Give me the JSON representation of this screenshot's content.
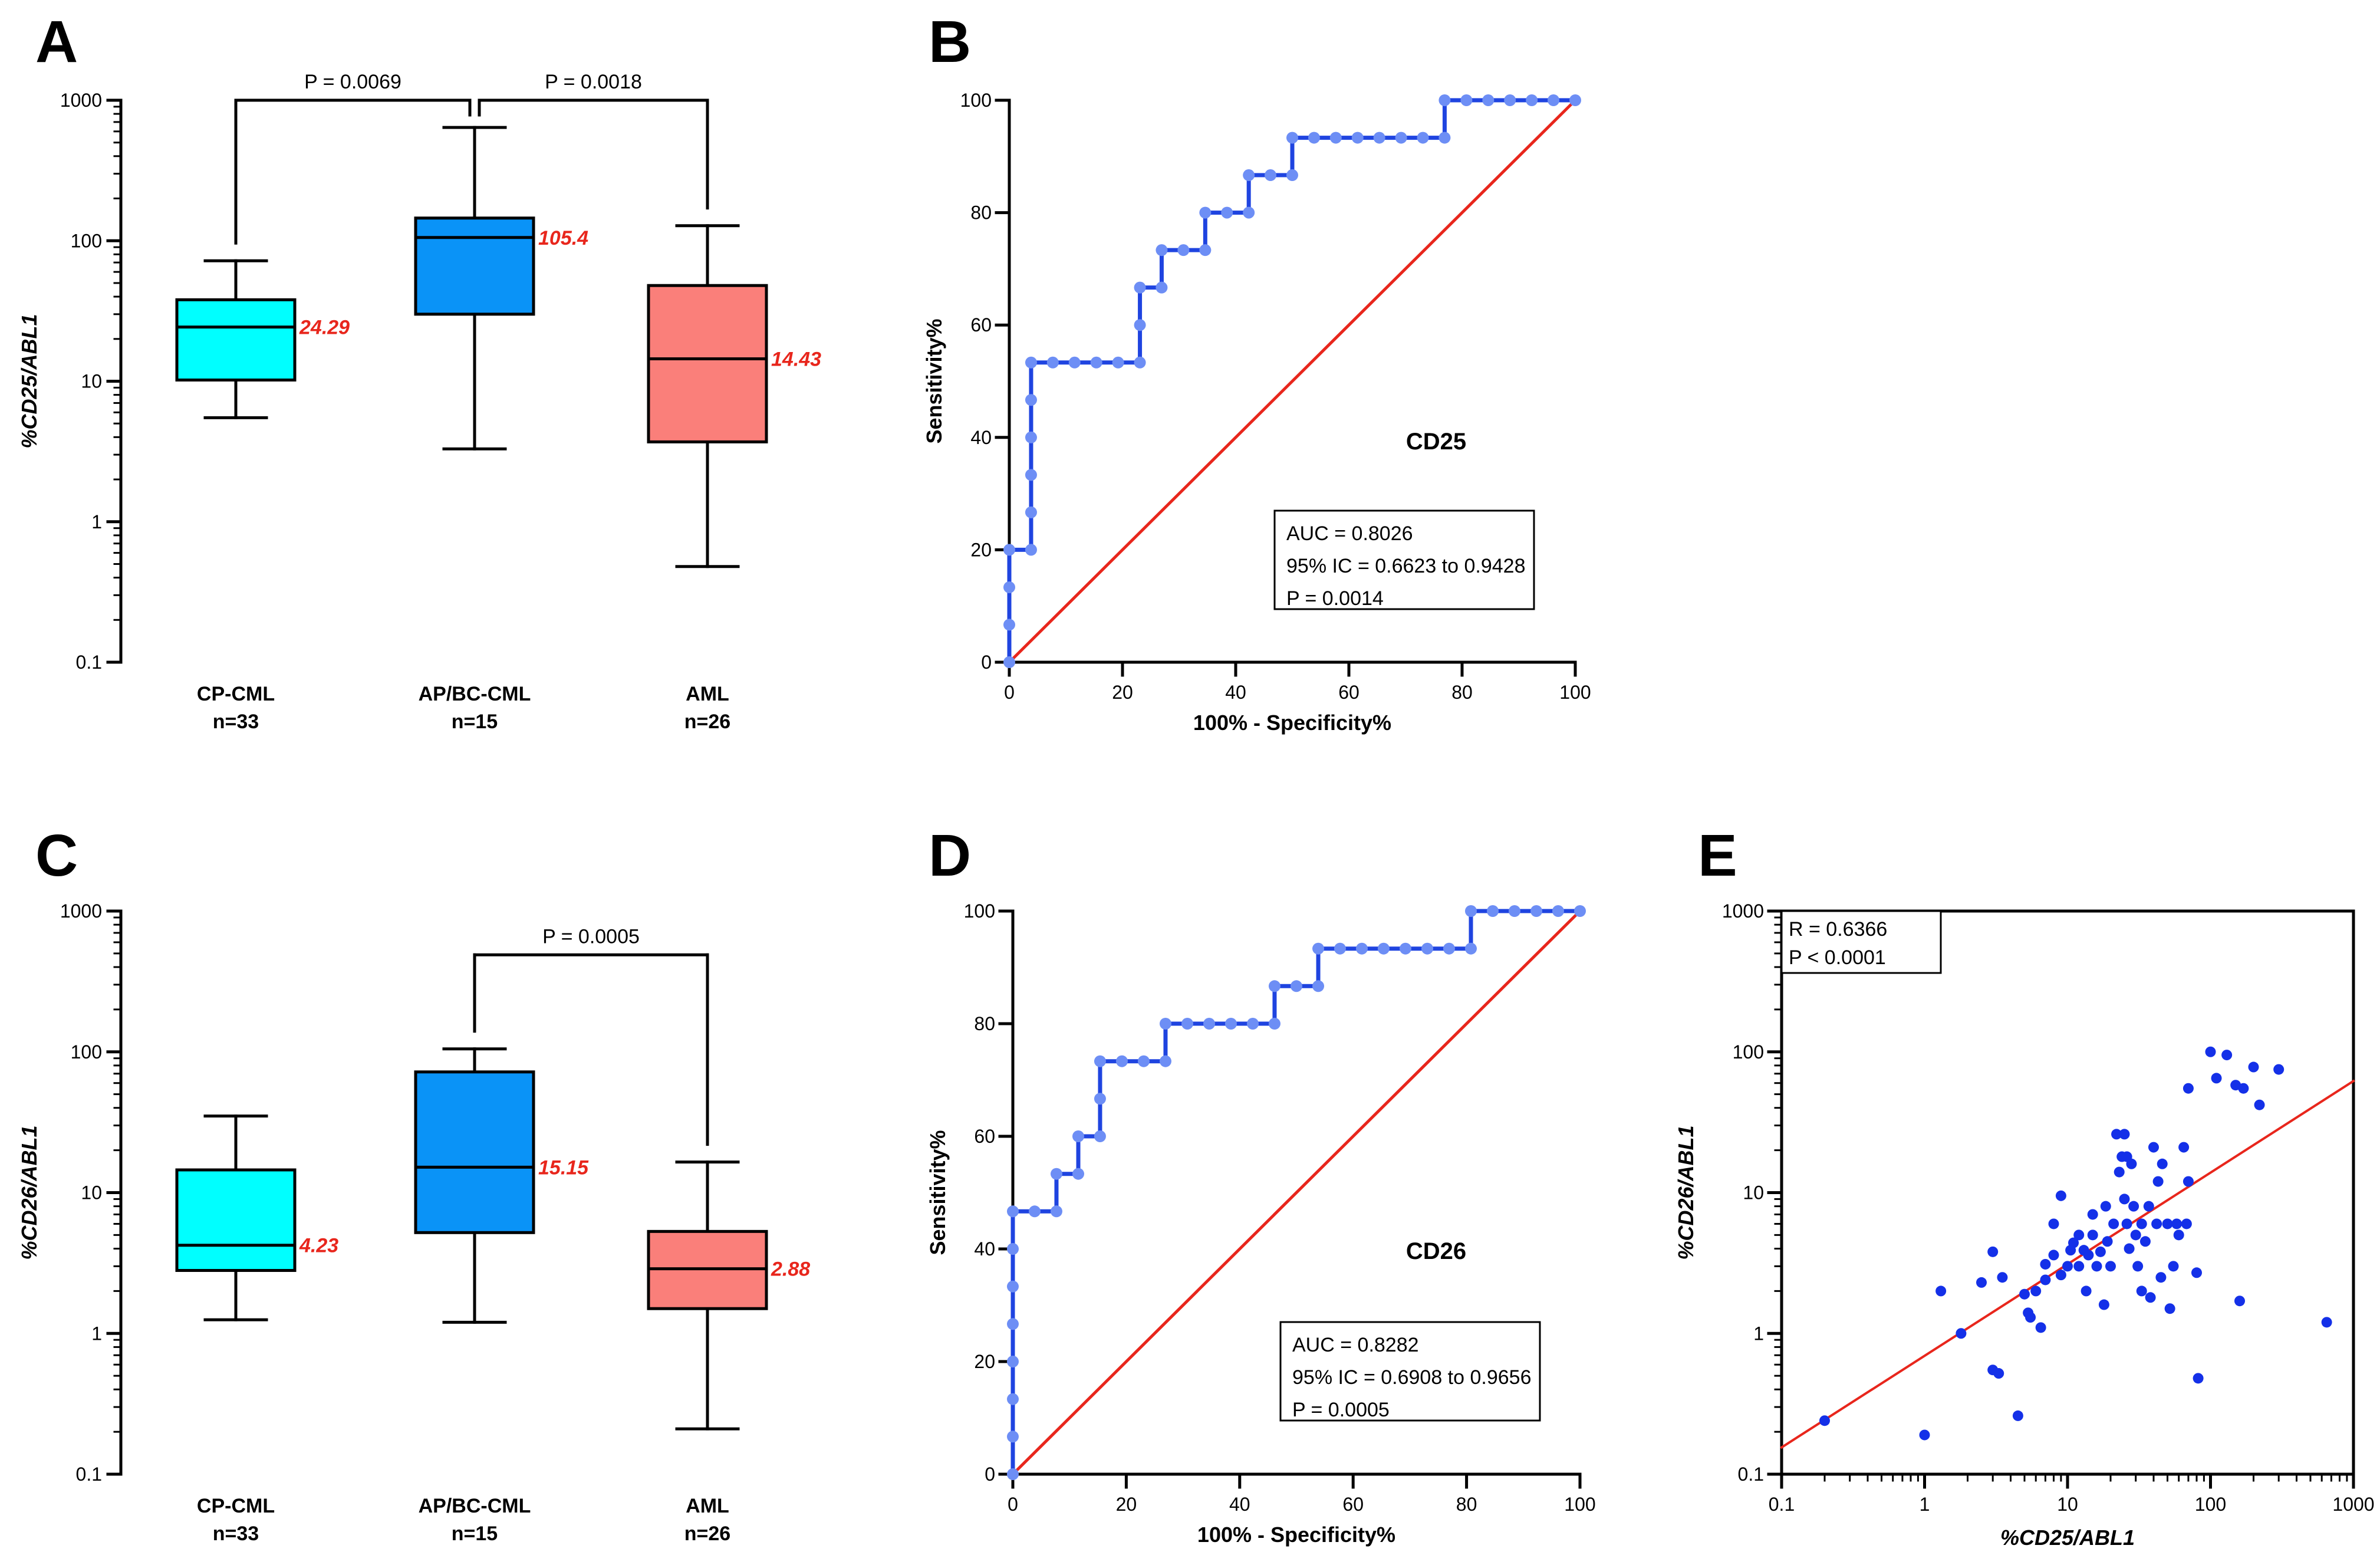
{
  "chart_data": [
    {
      "panel": "A",
      "type": "box",
      "ylabel": "%CD25/ABL1",
      "yscale": "log",
      "ylim": [
        0.1,
        1000
      ],
      "yticks": [
        "0.1",
        "1",
        "10",
        "100",
        "1000"
      ],
      "categories": [
        {
          "name": "CP-CML",
          "n": "n=33"
        },
        {
          "name": "AP/BC-CML",
          "n": "n=15"
        },
        {
          "name": "AML",
          "n": "n=26"
        }
      ],
      "colors": [
        "#00ffff",
        "#0a93f7",
        "#fa7f7a"
      ],
      "boxes": [
        {
          "min": 5.5,
          "q1": 10.2,
          "median": 24.29,
          "q3": 38,
          "max": 72,
          "label": "24.29"
        },
        {
          "min": 3.3,
          "q1": 30,
          "median": 105.4,
          "q3": 145,
          "max": 640,
          "label": "105.4"
        },
        {
          "min": 0.48,
          "q1": 3.7,
          "median": 14.43,
          "q3": 48,
          "max": 128,
          "label": "14.43"
        }
      ],
      "comparisons": [
        {
          "from": 0,
          "to": 1,
          "text": "P = 0.0069"
        },
        {
          "from": 1,
          "to": 2,
          "text": "P = 0.0018"
        }
      ]
    },
    {
      "panel": "B",
      "type": "line",
      "title": "CD25",
      "xlabel": "100% - Specificity%",
      "ylabel": "Sensitivity%",
      "xlim": [
        0,
        100
      ],
      "ylim": [
        0,
        100
      ],
      "ticks": [
        "0",
        "20",
        "40",
        "60",
        "80",
        "100"
      ],
      "stats": [
        "AUC =  0.8026",
        "95% IC = 0.6623 to 0.9428",
        "P = 0.0014"
      ],
      "roc": [
        [
          0,
          0
        ],
        [
          0,
          6.67
        ],
        [
          0,
          13.33
        ],
        [
          0,
          20
        ],
        [
          3.85,
          20
        ],
        [
          3.85,
          26.67
        ],
        [
          3.85,
          33.33
        ],
        [
          3.85,
          40
        ],
        [
          3.85,
          46.67
        ],
        [
          3.85,
          53.33
        ],
        [
          7.69,
          53.33
        ],
        [
          11.54,
          53.33
        ],
        [
          15.38,
          53.33
        ],
        [
          19.23,
          53.33
        ],
        [
          23.08,
          53.33
        ],
        [
          23.08,
          60
        ],
        [
          23.08,
          66.67
        ],
        [
          26.92,
          66.67
        ],
        [
          26.92,
          73.33
        ],
        [
          30.77,
          73.33
        ],
        [
          34.62,
          73.33
        ],
        [
          34.62,
          80
        ],
        [
          38.46,
          80
        ],
        [
          42.31,
          80
        ],
        [
          42.31,
          86.67
        ],
        [
          46.15,
          86.67
        ],
        [
          50,
          86.67
        ],
        [
          50,
          93.33
        ],
        [
          53.85,
          93.33
        ],
        [
          57.69,
          93.33
        ],
        [
          61.54,
          93.33
        ],
        [
          65.38,
          93.33
        ],
        [
          69.23,
          93.33
        ],
        [
          73.08,
          93.33
        ],
        [
          76.92,
          93.33
        ],
        [
          76.92,
          100
        ],
        [
          80.77,
          100
        ],
        [
          84.62,
          100
        ],
        [
          88.46,
          100
        ],
        [
          92.31,
          100
        ],
        [
          96.15,
          100
        ],
        [
          100,
          100
        ]
      ]
    },
    {
      "panel": "C",
      "type": "box",
      "ylabel": "%CD26/ABL1",
      "yscale": "log",
      "ylim": [
        0.1,
        1000
      ],
      "yticks": [
        "0.1",
        "1",
        "10",
        "100",
        "1000"
      ],
      "categories": [
        {
          "name": "CP-CML",
          "n": "n=33"
        },
        {
          "name": "AP/BC-CML",
          "n": "n=15"
        },
        {
          "name": "AML",
          "n": "n=26"
        }
      ],
      "colors": [
        "#00ffff",
        "#0a93f7",
        "#fa7f7a"
      ],
      "boxes": [
        {
          "min": 1.25,
          "q1": 2.8,
          "median": 4.23,
          "q3": 14.5,
          "max": 35,
          "label": "4.23"
        },
        {
          "min": 1.2,
          "q1": 5.2,
          "median": 15.15,
          "q3": 72,
          "max": 105,
          "label": "15.15"
        },
        {
          "min": 0.21,
          "q1": 1.5,
          "median": 2.88,
          "q3": 5.3,
          "max": 16.5,
          "label": "2.88"
        }
      ],
      "comparisons": [
        {
          "from": 1,
          "to": 2,
          "text": "P = 0.0005"
        }
      ]
    },
    {
      "panel": "D",
      "type": "line",
      "title": "CD26",
      "xlabel": "100% - Specificity%",
      "ylabel": "Sensitivity%",
      "xlim": [
        0,
        100
      ],
      "ylim": [
        0,
        100
      ],
      "ticks": [
        "0",
        "20",
        "40",
        "60",
        "80",
        "100"
      ],
      "stats": [
        "AUC =  0.8282",
        "95% IC = 0.6908 to 0.9656",
        "P = 0.0005"
      ],
      "roc": [
        [
          0,
          0
        ],
        [
          0,
          6.67
        ],
        [
          0,
          13.33
        ],
        [
          0,
          20
        ],
        [
          0,
          26.67
        ],
        [
          0,
          33.33
        ],
        [
          0,
          40
        ],
        [
          0,
          46.67
        ],
        [
          3.85,
          46.67
        ],
        [
          7.69,
          46.67
        ],
        [
          7.69,
          53.33
        ],
        [
          11.54,
          53.33
        ],
        [
          11.54,
          60
        ],
        [
          15.38,
          60
        ],
        [
          15.38,
          66.67
        ],
        [
          15.38,
          73.33
        ],
        [
          19.23,
          73.33
        ],
        [
          23.08,
          73.33
        ],
        [
          26.92,
          73.33
        ],
        [
          26.92,
          80
        ],
        [
          30.77,
          80
        ],
        [
          34.62,
          80
        ],
        [
          38.46,
          80
        ],
        [
          42.31,
          80
        ],
        [
          46.15,
          80
        ],
        [
          46.15,
          86.67
        ],
        [
          50,
          86.67
        ],
        [
          53.85,
          86.67
        ],
        [
          53.85,
          93.33
        ],
        [
          57.69,
          93.33
        ],
        [
          61.54,
          93.33
        ],
        [
          65.38,
          93.33
        ],
        [
          69.23,
          93.33
        ],
        [
          73.08,
          93.33
        ],
        [
          76.92,
          93.33
        ],
        [
          80.77,
          93.33
        ],
        [
          80.77,
          100
        ],
        [
          84.62,
          100
        ],
        [
          88.46,
          100
        ],
        [
          92.31,
          100
        ],
        [
          96.15,
          100
        ],
        [
          100,
          100
        ]
      ]
    },
    {
      "panel": "E",
      "type": "scatter",
      "xlabel": "%CD25/ABL1",
      "ylabel": "%CD26/ABL1",
      "xscale": "log",
      "yscale": "log",
      "xlim": [
        0.1,
        1000
      ],
      "ylim": [
        0.1,
        1000
      ],
      "xticks": [
        "0.1",
        "1",
        "10",
        "100",
        "1000"
      ],
      "yticks": [
        "0.1",
        "1",
        "10",
        "100",
        "1000"
      ],
      "stats": [
        "R = 0.6366",
        "P < 0.0001"
      ],
      "fit": {
        "x1": 0.1,
        "y1": 0.155,
        "x2": 1000,
        "y2": 62
      },
      "points": [
        [
          0.2,
          0.24
        ],
        [
          1,
          0.19
        ],
        [
          1.3,
          2
        ],
        [
          1.8,
          1
        ],
        [
          2.5,
          2.3
        ],
        [
          3,
          0.55
        ],
        [
          3,
          3.8
        ],
        [
          3.3,
          0.52
        ],
        [
          3.5,
          2.5
        ],
        [
          4.5,
          0.26
        ],
        [
          5,
          1.9
        ],
        [
          5.3,
          1.4
        ],
        [
          5.5,
          1.3
        ],
        [
          6,
          2
        ],
        [
          6.5,
          1.1
        ],
        [
          7,
          2.4
        ],
        [
          7,
          3.1
        ],
        [
          8,
          6
        ],
        [
          8,
          3.6
        ],
        [
          9,
          9.5
        ],
        [
          9,
          2.6
        ],
        [
          10,
          3
        ],
        [
          10.5,
          3.9
        ],
        [
          11,
          4.4
        ],
        [
          12,
          3
        ],
        [
          12,
          5
        ],
        [
          13,
          3.9
        ],
        [
          13.5,
          2
        ],
        [
          14,
          3.6
        ],
        [
          15,
          5
        ],
        [
          15,
          7
        ],
        [
          16,
          3
        ],
        [
          17,
          3.8
        ],
        [
          18,
          1.6
        ],
        [
          18.5,
          8
        ],
        [
          19,
          4.5
        ],
        [
          20,
          3
        ],
        [
          21,
          6
        ],
        [
          22,
          26
        ],
        [
          23,
          14
        ],
        [
          24,
          18
        ],
        [
          25,
          9
        ],
        [
          25,
          26
        ],
        [
          26,
          6
        ],
        [
          26,
          18
        ],
        [
          27,
          4
        ],
        [
          28,
          16
        ],
        [
          29,
          8
        ],
        [
          30,
          5
        ],
        [
          31,
          3
        ],
        [
          33,
          2
        ],
        [
          33,
          6
        ],
        [
          35,
          4.5
        ],
        [
          37,
          8
        ],
        [
          38,
          1.8
        ],
        [
          40,
          21
        ],
        [
          42,
          6
        ],
        [
          43,
          12
        ],
        [
          45,
          2.5
        ],
        [
          46,
          16
        ],
        [
          50,
          6
        ],
        [
          52,
          1.5
        ],
        [
          55,
          3
        ],
        [
          58,
          6
        ],
        [
          60,
          5
        ],
        [
          65,
          21
        ],
        [
          68,
          6
        ],
        [
          70,
          12
        ],
        [
          70,
          55
        ],
        [
          80,
          2.7
        ],
        [
          82,
          0.48
        ],
        [
          100,
          100
        ],
        [
          110,
          65
        ],
        [
          130,
          95
        ],
        [
          150,
          58
        ],
        [
          160,
          1.7
        ],
        [
          170,
          55
        ],
        [
          200,
          78
        ],
        [
          220,
          42
        ],
        [
          300,
          75
        ],
        [
          650,
          1.2
        ]
      ]
    }
  ]
}
